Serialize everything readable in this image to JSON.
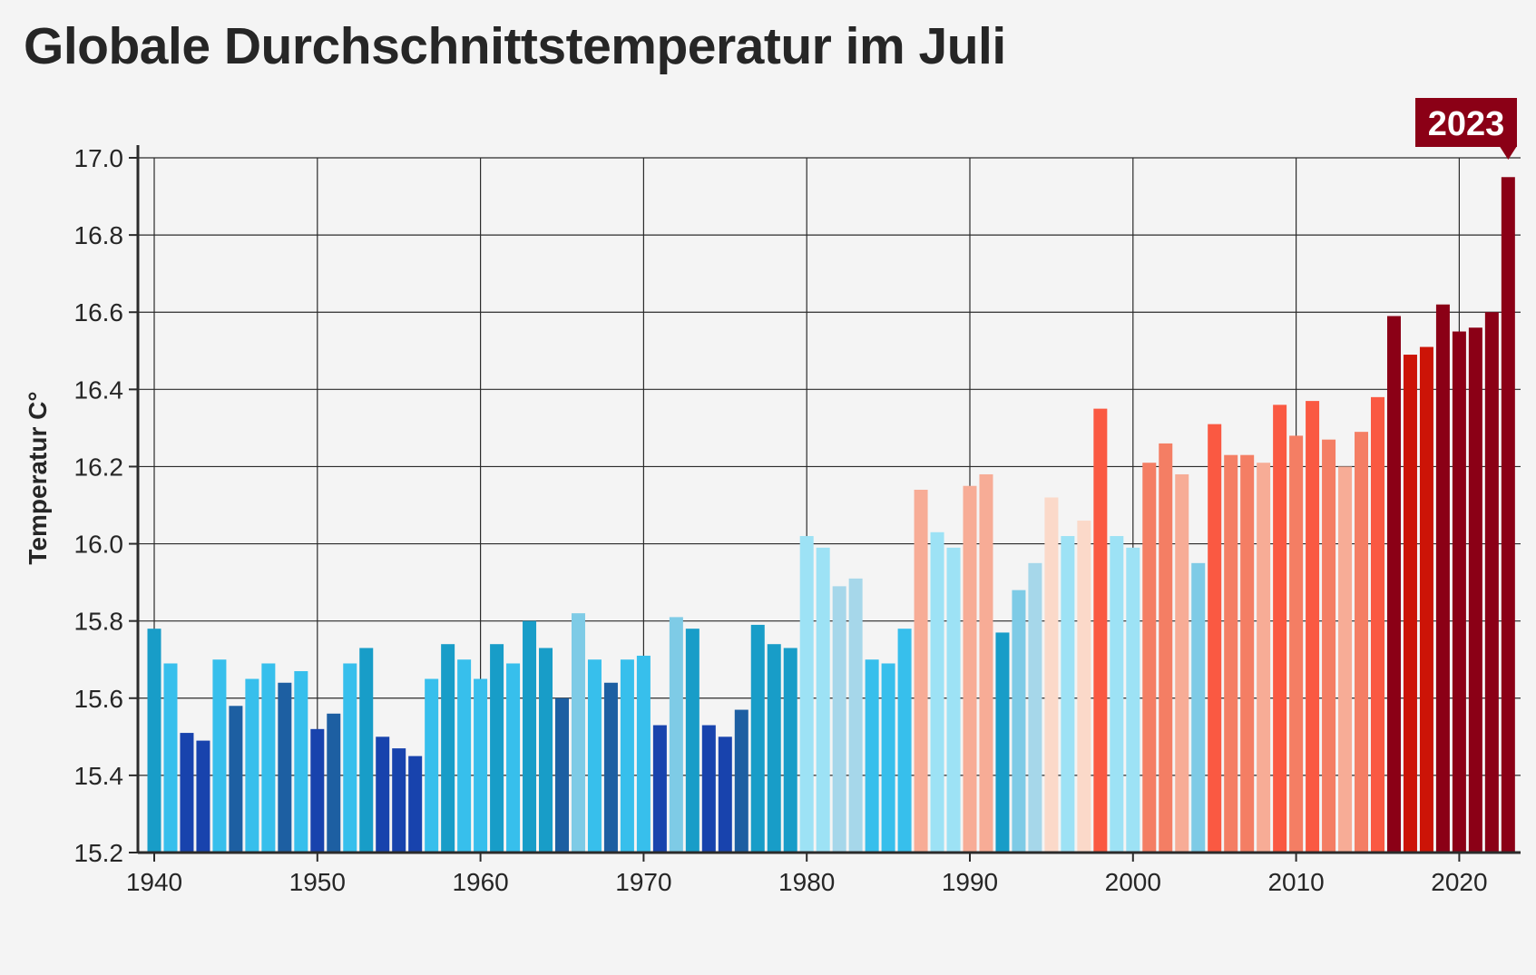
{
  "chart_data": {
    "type": "bar",
    "title": "Globale Durchschnittstemperatur im Juli",
    "xlabel": "",
    "ylabel": "Temperatur C°",
    "ylim": [
      15.2,
      17.0
    ],
    "yticks": [
      "15.2",
      "15.4",
      "15.6",
      "15.8",
      "16.0",
      "16.2",
      "16.4",
      "16.6",
      "16.8",
      "17.0"
    ],
    "xticks": [
      "1940",
      "1950",
      "1960",
      "1970",
      "1980",
      "1990",
      "2000",
      "2010",
      "2020"
    ],
    "grid": true,
    "highlight": {
      "label": "2023",
      "color": "#8b0016"
    },
    "x": [
      1940,
      1941,
      1942,
      1943,
      1944,
      1945,
      1946,
      1947,
      1948,
      1949,
      1950,
      1951,
      1952,
      1953,
      1954,
      1955,
      1956,
      1957,
      1958,
      1959,
      1960,
      1961,
      1962,
      1963,
      1964,
      1965,
      1966,
      1967,
      1968,
      1969,
      1970,
      1971,
      1972,
      1973,
      1974,
      1975,
      1976,
      1977,
      1978,
      1979,
      1980,
      1981,
      1982,
      1983,
      1984,
      1985,
      1986,
      1987,
      1988,
      1989,
      1990,
      1991,
      1992,
      1993,
      1994,
      1995,
      1996,
      1997,
      1998,
      1999,
      2000,
      2001,
      2002,
      2003,
      2004,
      2005,
      2006,
      2007,
      2008,
      2009,
      2010,
      2011,
      2012,
      2013,
      2014,
      2015,
      2016,
      2017,
      2018,
      2019,
      2020,
      2021,
      2022,
      2023
    ],
    "values": [
      15.78,
      15.69,
      15.51,
      15.49,
      15.7,
      15.58,
      15.65,
      15.69,
      15.64,
      15.67,
      15.52,
      15.56,
      15.69,
      15.73,
      15.5,
      15.47,
      15.45,
      15.65,
      15.74,
      15.7,
      15.65,
      15.74,
      15.69,
      15.8,
      15.73,
      15.6,
      15.82,
      15.7,
      15.64,
      15.7,
      15.71,
      15.53,
      15.81,
      15.78,
      15.53,
      15.5,
      15.57,
      15.79,
      15.74,
      15.73,
      16.02,
      15.99,
      15.89,
      15.91,
      15.7,
      15.69,
      15.78,
      16.14,
      16.03,
      15.99,
      16.15,
      16.18,
      15.77,
      15.88,
      15.95,
      16.12,
      16.02,
      16.06,
      16.35,
      16.02,
      15.99,
      16.21,
      16.26,
      16.18,
      15.95,
      16.31,
      16.23,
      16.23,
      16.21,
      16.36,
      16.28,
      16.37,
      16.27,
      16.2,
      16.29,
      16.38,
      16.59,
      16.49,
      16.51,
      16.62,
      16.55,
      16.56,
      16.6,
      16.95
    ],
    "colors": [
      "#189dc8",
      "#37bfec",
      "#1843ad",
      "#1843ad",
      "#37bfec",
      "#1d5fa2",
      "#37bfec",
      "#37bfec",
      "#1d5fa2",
      "#37bfec",
      "#1843ad",
      "#1d5fa2",
      "#37bfec",
      "#189dc8",
      "#1843ad",
      "#1843ad",
      "#1843ad",
      "#37bfec",
      "#189dc8",
      "#37bfec",
      "#37bfec",
      "#189dc8",
      "#37bfec",
      "#189dc8",
      "#189dc8",
      "#1d5fa2",
      "#7ecbe6",
      "#37bfec",
      "#1d5fa2",
      "#37bfec",
      "#37bfec",
      "#1843ad",
      "#7ecbe6",
      "#189dc8",
      "#1843ad",
      "#1843ad",
      "#1d5fa2",
      "#189dc8",
      "#189dc8",
      "#189dc8",
      "#9de2f5",
      "#9de2f5",
      "#a6d7ea",
      "#a6d7ea",
      "#37bfec",
      "#37bfec",
      "#37bfec",
      "#f7ac96",
      "#9de2f5",
      "#9de2f5",
      "#f7ac96",
      "#f7ac96",
      "#189dc8",
      "#7ecbe6",
      "#a6d7ea",
      "#fbd9c9",
      "#9de2f5",
      "#fbd9c9",
      "#fa5942",
      "#9de2f5",
      "#9de2f5",
      "#f47e64",
      "#f47e64",
      "#f7ac96",
      "#7ecbe6",
      "#fa5942",
      "#f47e64",
      "#f47e64",
      "#f7ac96",
      "#fa5942",
      "#f47e64",
      "#fa5942",
      "#f47e64",
      "#f7ac96",
      "#f47e64",
      "#fa5942",
      "#8b0016",
      "#cc1407",
      "#cc1407",
      "#8b0016",
      "#8b0016",
      "#8b0016",
      "#8b0016",
      "#8b0016"
    ]
  }
}
